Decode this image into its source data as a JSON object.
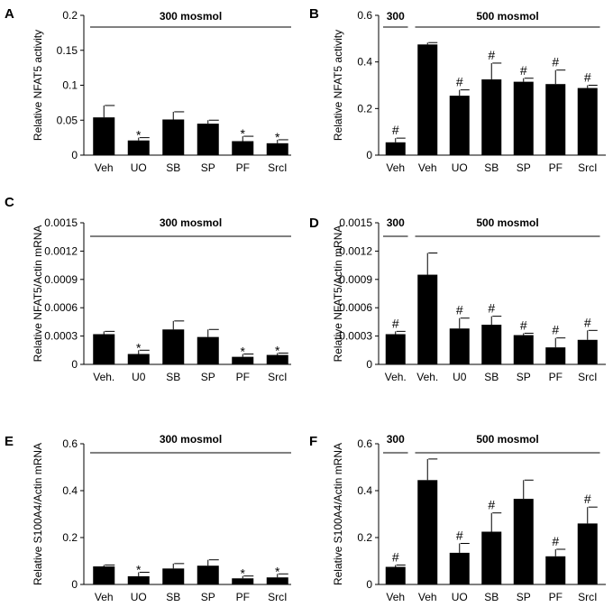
{
  "chart_data": [
    {
      "panel": "A",
      "type": "bar",
      "ylabel": "Relative NFAT5 activity",
      "categories": [
        "Veh",
        "UO",
        "SB",
        "SP",
        "PF",
        "SrcI"
      ],
      "values": [
        0.054,
        0.021,
        0.051,
        0.045,
        0.02,
        0.017
      ],
      "errors": [
        0.017,
        0.004,
        0.011,
        0.005,
        0.007,
        0.005
      ],
      "marks": [
        "",
        "*",
        "",
        "",
        "*",
        "*"
      ],
      "ylim": [
        0,
        0.2
      ],
      "yticks": [
        "0",
        "0.05",
        "0.1",
        "0.15",
        "0.2"
      ],
      "annotations": [
        {
          "text": "300 mosmol",
          "from": 0,
          "to": 5
        }
      ]
    },
    {
      "panel": "B",
      "type": "bar",
      "ylabel": "Relative NFAT5 activity",
      "categories": [
        "Veh",
        "Veh",
        "UO",
        "SB",
        "SP",
        "PF",
        "SrcI"
      ],
      "values": [
        0.055,
        0.475,
        0.255,
        0.325,
        0.315,
        0.305,
        0.288
      ],
      "errors": [
        0.018,
        0.008,
        0.025,
        0.07,
        0.015,
        0.06,
        0.012
      ],
      "marks": [
        "#",
        "",
        "#",
        "#",
        "#",
        "#",
        "#"
      ],
      "ylim": [
        0,
        0.6
      ],
      "yticks": [
        "0",
        "0.2",
        "0.4",
        "0.6"
      ],
      "annotations": [
        {
          "text": "300",
          "from": 0,
          "to": 0
        },
        {
          "text": "500 mosmol",
          "from": 1,
          "to": 6
        }
      ]
    },
    {
      "panel": "C",
      "type": "bar",
      "ylabel": "Relative NFAT5/Actin mRNA",
      "categories": [
        "Veh.",
        "U0",
        "SB",
        "SP",
        "PF",
        "SrcI"
      ],
      "values": [
        0.00032,
        0.00011,
        0.00037,
        0.00029,
        8e-05,
        0.0001
      ],
      "errors": [
        3e-05,
        4e-05,
        9e-05,
        8e-05,
        3e-05,
        2e-05
      ],
      "marks": [
        "",
        "*",
        "",
        "",
        "*",
        "*"
      ],
      "ylim": [
        0,
        0.0015
      ],
      "yticks": [
        "0",
        "0.0003",
        "0.0006",
        "0.0009",
        "0.0012",
        "0.0015"
      ],
      "annotations": [
        {
          "text": "300 mosmol",
          "from": 0,
          "to": 5
        }
      ]
    },
    {
      "panel": "D",
      "type": "bar",
      "ylabel": "Relative NFAT5/Actin mRNA",
      "categories": [
        "Veh.",
        "Veh.",
        "U0",
        "SB",
        "SP",
        "PF",
        "SrcI"
      ],
      "values": [
        0.00032,
        0.00095,
        0.00038,
        0.00042,
        0.00031,
        0.00018,
        0.00026
      ],
      "errors": [
        3e-05,
        0.00023,
        0.00011,
        9e-05,
        2e-05,
        0.0001,
        0.0001
      ],
      "marks": [
        "#",
        "",
        "#",
        "#",
        "#",
        "#",
        "#"
      ],
      "ylim": [
        0,
        0.0015
      ],
      "yticks": [
        "0",
        "0.0003",
        "0.0006",
        "0.0009",
        "0.0012",
        "0.0015"
      ],
      "annotations": [
        {
          "text": "300",
          "from": 0,
          "to": 0
        },
        {
          "text": "500 mosmol",
          "from": 1,
          "to": 6
        }
      ]
    },
    {
      "panel": "E",
      "type": "bar",
      "ylabel": "Relative S100A4/Actin mRNA",
      "categories": [
        "Veh",
        "UO",
        "SB",
        "SP",
        "PF",
        "SrcI"
      ],
      "values": [
        0.077,
        0.035,
        0.068,
        0.08,
        0.026,
        0.03
      ],
      "errors": [
        0.006,
        0.017,
        0.021,
        0.025,
        0.01,
        0.015
      ],
      "marks": [
        "",
        "*",
        "",
        "",
        "*",
        "*"
      ],
      "ylim": [
        0,
        0.6
      ],
      "yticks": [
        "0",
        "0.2",
        "0.4",
        "0.6"
      ],
      "annotations": [
        {
          "text": "300 mosmol",
          "from": 0,
          "to": 5
        }
      ]
    },
    {
      "panel": "F",
      "type": "bar",
      "ylabel": "Relative S100A4/Actin mRNA",
      "categories": [
        "Veh",
        "Veh",
        "UO",
        "SB",
        "SP",
        "PF",
        "SrcI"
      ],
      "values": [
        0.075,
        0.445,
        0.135,
        0.225,
        0.365,
        0.12,
        0.26
      ],
      "errors": [
        0.008,
        0.09,
        0.04,
        0.08,
        0.08,
        0.03,
        0.07
      ],
      "marks": [
        "#",
        "",
        "#",
        "#",
        "",
        "#",
        "#"
      ],
      "ylim": [
        0,
        0.6
      ],
      "yticks": [
        "0",
        "0.2",
        "0.4",
        "0.6"
      ],
      "annotations": [
        {
          "text": "300",
          "from": 0,
          "to": 0
        },
        {
          "text": "500 mosmol",
          "from": 1,
          "to": 6
        }
      ]
    }
  ]
}
